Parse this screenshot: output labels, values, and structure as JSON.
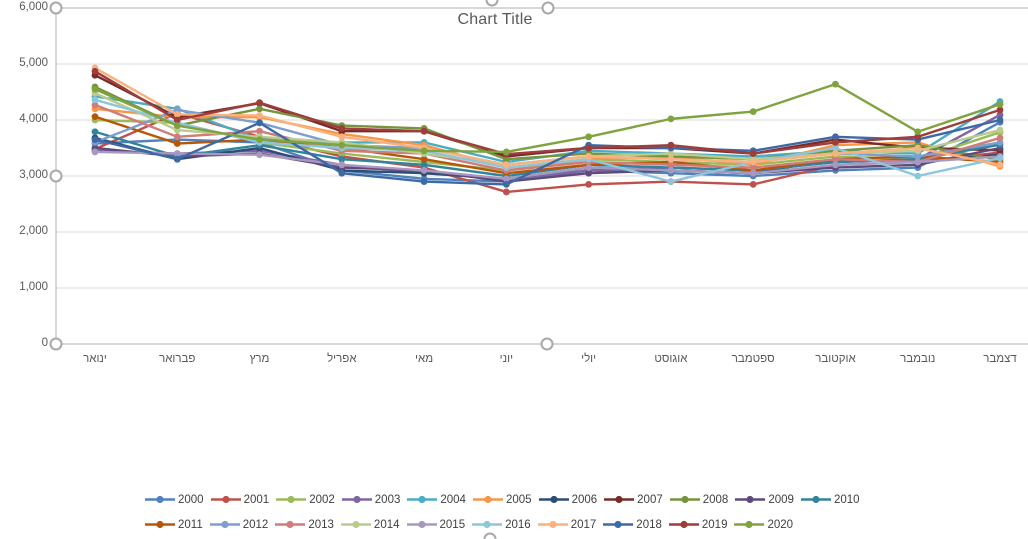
{
  "title": "Chart Title",
  "colors": {
    "grid": "#d9d9d9",
    "selection_border": "#bfbfbf",
    "axis_text": "#595959",
    "title_text": "#595959",
    "legend_text": "#404040",
    "handle": "#a8a8a8"
  },
  "chart_data": {
    "type": "line",
    "title": "Chart Title",
    "categories": [
      "ינואר",
      "פברואר",
      "מרץ",
      "אפריל",
      "מאי",
      "יוני",
      "יולי",
      "אוגוסט",
      "ספטמבר",
      "אוקטובר",
      "נובמבר",
      "דצמבר"
    ],
    "ylim": [
      0,
      6000
    ],
    "ytick_step": 1000,
    "ytick_labels": [
      "0",
      "1,000",
      "2,000",
      "3,000",
      "4,000",
      "5,000",
      "6,000"
    ],
    "grid": true,
    "legend_position": "bottom",
    "legend_rows": [
      11,
      10
    ],
    "series": [
      {
        "name": "2000",
        "color": "#4F81BD",
        "values": [
          3580,
          3650,
          3600,
          3100,
          2950,
          2900,
          3100,
          3050,
          3000,
          3100,
          3150,
          3960
        ]
      },
      {
        "name": "2001",
        "color": "#C0504D",
        "values": [
          3480,
          4120,
          3700,
          3350,
          3150,
          2715,
          2850,
          2900,
          2850,
          3200,
          3250,
          3420
        ]
      },
      {
        "name": "2002",
        "color": "#9BBB59",
        "values": [
          4000,
          3950,
          3600,
          3400,
          3250,
          3100,
          3300,
          3250,
          3200,
          3350,
          3300,
          3780
        ]
      },
      {
        "name": "2003",
        "color": "#8064A2",
        "values": [
          3450,
          3400,
          3450,
          3200,
          3050,
          2950,
          3100,
          3150,
          3100,
          3250,
          3300,
          4090
        ]
      },
      {
        "name": "2004",
        "color": "#4BACC6",
        "values": [
          4420,
          4200,
          3650,
          3600,
          3600,
          3250,
          3450,
          3400,
          3350,
          3450,
          3400,
          4330
        ]
      },
      {
        "name": "2005",
        "color": "#F79646",
        "values": [
          4200,
          4050,
          4050,
          3750,
          3550,
          3150,
          3300,
          3350,
          3200,
          3550,
          3600,
          3170
        ]
      },
      {
        "name": "2006",
        "color": "#2C4D75",
        "values": [
          3680,
          3300,
          3500,
          3100,
          3050,
          2950,
          3150,
          3100,
          3050,
          3300,
          3250,
          3380
        ]
      },
      {
        "name": "2007",
        "color": "#772C2A",
        "values": [
          4800,
          4050,
          4300,
          3800,
          3800,
          3350,
          3500,
          3500,
          3400,
          3650,
          3500,
          3460
        ]
      },
      {
        "name": "2008",
        "color": "#77933C",
        "values": [
          4590,
          3900,
          4200,
          3900,
          3850,
          3300,
          3400,
          3350,
          3300,
          3450,
          3550,
          3290
        ]
      },
      {
        "name": "2009",
        "color": "#604A7B",
        "values": [
          3500,
          3350,
          3400,
          3150,
          3100,
          2900,
          3050,
          3100,
          3050,
          3150,
          3200,
          3500
        ]
      },
      {
        "name": "2010",
        "color": "#31849B",
        "values": [
          3790,
          3350,
          3550,
          3300,
          3200,
          3000,
          3200,
          3150,
          3100,
          3250,
          3300,
          3560
        ]
      },
      {
        "name": "2011",
        "color": "#B65708",
        "values": [
          4060,
          3580,
          3650,
          3500,
          3300,
          3050,
          3200,
          3250,
          3100,
          3300,
          3350,
          3250
        ]
      },
      {
        "name": "2012",
        "color": "#7E9DD1",
        "values": [
          3600,
          4180,
          3950,
          3550,
          3500,
          3200,
          3350,
          3300,
          3250,
          3400,
          3350,
          3600
        ]
      },
      {
        "name": "2013",
        "color": "#CF7D7A",
        "values": [
          4270,
          3700,
          3800,
          3450,
          3400,
          3100,
          3250,
          3200,
          3150,
          3300,
          3250,
          3680
        ]
      },
      {
        "name": "2014",
        "color": "#B9CC8D",
        "values": [
          4480,
          3820,
          3700,
          3600,
          3400,
          3200,
          3350,
          3400,
          3300,
          3400,
          3450,
          3820
        ]
      },
      {
        "name": "2015",
        "color": "#A698C1",
        "values": [
          3430,
          3400,
          3380,
          3200,
          3100,
          2950,
          3150,
          3100,
          3050,
          3200,
          3250,
          3350
        ]
      },
      {
        "name": "2016",
        "color": "#8DC6DB",
        "values": [
          4360,
          3950,
          3600,
          3500,
          3450,
          3150,
          3300,
          2900,
          3250,
          3500,
          3000,
          3320
        ]
      },
      {
        "name": "2017",
        "color": "#F9B27D",
        "values": [
          4930,
          4100,
          4080,
          3700,
          3500,
          3200,
          3350,
          3300,
          3250,
          3400,
          3500,
          3200
        ]
      },
      {
        "name": "2018",
        "color": "#3D6AA5",
        "values": [
          3650,
          3300,
          3950,
          3050,
          2900,
          2850,
          3550,
          3500,
          3450,
          3700,
          3650,
          4000
        ]
      },
      {
        "name": "2019",
        "color": "#9E3D3A",
        "values": [
          4870,
          4000,
          4310,
          3850,
          3800,
          3390,
          3500,
          3550,
          3400,
          3600,
          3700,
          4180
        ]
      },
      {
        "name": "2020",
        "color": "#7FA33F",
        "values": [
          4550,
          3900,
          3650,
          3550,
          3450,
          3430,
          3700,
          4020,
          4150,
          4640,
          3790,
          4280
        ]
      }
    ]
  }
}
